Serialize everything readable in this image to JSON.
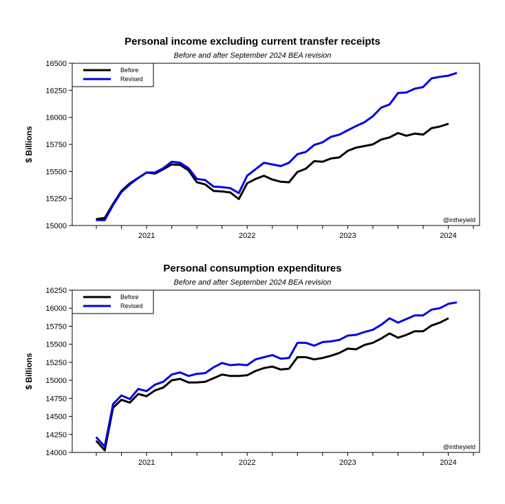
{
  "chart_data": [
    {
      "type": "line",
      "title": "Personal income excluding current transfer receipts",
      "subtitle": "Before and after September 2024 BEA revision",
      "ylabel": "$ Billions",
      "xlabel": "",
      "credit": "@intheyield",
      "ylim": [
        15000,
        16500
      ],
      "yticks": [
        15000,
        15250,
        15500,
        15750,
        16000,
        16250,
        16500
      ],
      "xticks": [
        "2021",
        "2022",
        "2023",
        "2024"
      ],
      "legend_position": "top-left",
      "grid": false,
      "colors": {
        "Before": "#000000",
        "Revised": "#0000e0"
      },
      "series": [
        {
          "name": "Before",
          "x_start": "2020-07",
          "values": [
            15060,
            15070,
            15200,
            15320,
            15390,
            15440,
            15490,
            15480,
            15520,
            15565,
            15560,
            15510,
            15400,
            15380,
            15320,
            15315,
            15305,
            15245,
            15390,
            15430,
            15460,
            15425,
            15405,
            15400,
            15495,
            15525,
            15595,
            15590,
            15620,
            15630,
            15690,
            15720,
            15735,
            15750,
            15795,
            15815,
            15855,
            15830,
            15850,
            15840,
            15900,
            15915,
            15940
          ]
        },
        {
          "name": "Revised",
          "x_start": "2020-07",
          "values": [
            15050,
            15050,
            15190,
            15310,
            15380,
            15440,
            15490,
            15490,
            15530,
            15590,
            15580,
            15530,
            15430,
            15420,
            15360,
            15355,
            15345,
            15300,
            15460,
            15520,
            15580,
            15565,
            15550,
            15580,
            15660,
            15680,
            15745,
            15770,
            15820,
            15840,
            15880,
            15920,
            15955,
            16010,
            16090,
            16120,
            16225,
            16230,
            16265,
            16280,
            16360,
            16375,
            16385,
            16410
          ]
        }
      ]
    },
    {
      "type": "line",
      "title": "Personal consumption expenditures",
      "subtitle": "Before and after September 2024 BEA revision",
      "ylabel": "$ Billions",
      "xlabel": "",
      "credit": "@intheyield",
      "ylim": [
        14000,
        16250
      ],
      "yticks": [
        14000,
        14250,
        14500,
        14750,
        15000,
        15250,
        15500,
        15750,
        16000,
        16250
      ],
      "xticks": [
        "2021",
        "2022",
        "2023",
        "2024"
      ],
      "legend_position": "top-left",
      "grid": false,
      "colors": {
        "Before": "#000000",
        "Revised": "#0000e0"
      },
      "series": [
        {
          "name": "Before",
          "x_start": "2020-07",
          "values": [
            14160,
            14030,
            14620,
            14730,
            14690,
            14810,
            14780,
            14860,
            14900,
            15000,
            15020,
            14970,
            14970,
            14980,
            15030,
            15080,
            15060,
            15060,
            15070,
            15130,
            15170,
            15190,
            15150,
            15160,
            15320,
            15320,
            15290,
            15310,
            15340,
            15380,
            15440,
            15430,
            15490,
            15520,
            15580,
            15650,
            15590,
            15630,
            15680,
            15680,
            15760,
            15800,
            15860
          ]
        },
        {
          "name": "Revised",
          "x_start": "2020-07",
          "values": [
            14210,
            14080,
            14670,
            14790,
            14740,
            14880,
            14850,
            14940,
            14980,
            15080,
            15110,
            15060,
            15090,
            15100,
            15180,
            15240,
            15210,
            15220,
            15210,
            15290,
            15320,
            15350,
            15300,
            15310,
            15520,
            15520,
            15480,
            15530,
            15540,
            15560,
            15620,
            15630,
            15670,
            15700,
            15770,
            15860,
            15800,
            15850,
            15900,
            15900,
            15980,
            16000,
            16060,
            16080
          ]
        }
      ]
    }
  ]
}
